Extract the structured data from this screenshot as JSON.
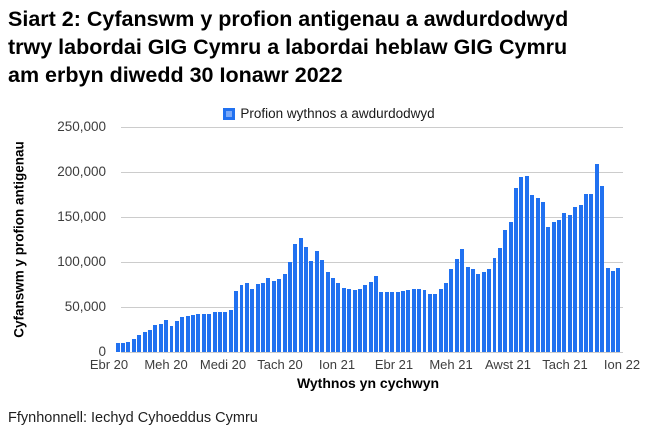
{
  "source": "Ffynhonnell: Iechyd Cyhoeddus Cymru",
  "chart_data": {
    "type": "bar",
    "title": "Siart 2: Cyfanswm y profion antigenau a awdurdodwyd trwy labordai GIG Cymru a labordai heblaw GIG Cymru am erbyn diwedd 30 Ionawr 2022",
    "title_lines": [
      "Siart 2: Cyfanswm y profion antigenau a awdurdodwyd",
      "trwy labordai GIG Cymru a labordai heblaw GIG Cymru",
      "am erbyn diwedd 30 Ionawr 2022"
    ],
    "legend": {
      "label": "Profion wythnos a awdurdodwyd",
      "position": "top"
    },
    "xlabel": "Wythnos yn cychwyn",
    "ylabel": "Cyfanswm y profion antigenau",
    "ylim": [
      0,
      250000
    ],
    "grid": true,
    "bar_color": "#2171f0",
    "yticks": [
      0,
      50000,
      100000,
      150000,
      200000,
      250000
    ],
    "ytick_labels": [
      "0",
      "50,000",
      "100,000",
      "150,000",
      "200,000",
      "250,000"
    ],
    "xtick_labels": [
      "Ebr 20",
      "Meh 20",
      "Medi 20",
      "Tach 20",
      "Ion 21",
      "Ebr 21",
      "Meh 21",
      "Awst 21",
      "Tach 21",
      "Ion 22"
    ],
    "values": [
      9500,
      10500,
      11000,
      15000,
      18500,
      22000,
      25000,
      29500,
      31500,
      36000,
      28500,
      34500,
      38500,
      39500,
      41500,
      42000,
      42000,
      42000,
      44000,
      44000,
      44000,
      47000,
      68000,
      74000,
      77000,
      70500,
      76000,
      77000,
      82500,
      79000,
      81000,
      87000,
      100000,
      120000,
      127000,
      117000,
      101000,
      112000,
      102000,
      89000,
      82000,
      77000,
      71500,
      70000,
      68500,
      70000,
      74000,
      77500,
      84000,
      66500,
      66500,
      67000,
      67000,
      68000,
      68500,
      70000,
      70000,
      68500,
      65000,
      65000,
      70000,
      77000,
      92500,
      103500,
      115000,
      95000,
      92000,
      86500,
      89000,
      92000,
      104000,
      115500,
      135500,
      145000,
      182000,
      194000,
      196000,
      174000,
      171000,
      167000,
      139000,
      145000,
      147000,
      155000,
      152500,
      161500,
      163000,
      176000,
      176000,
      209000,
      185000,
      93500,
      90500,
      93000
    ]
  }
}
